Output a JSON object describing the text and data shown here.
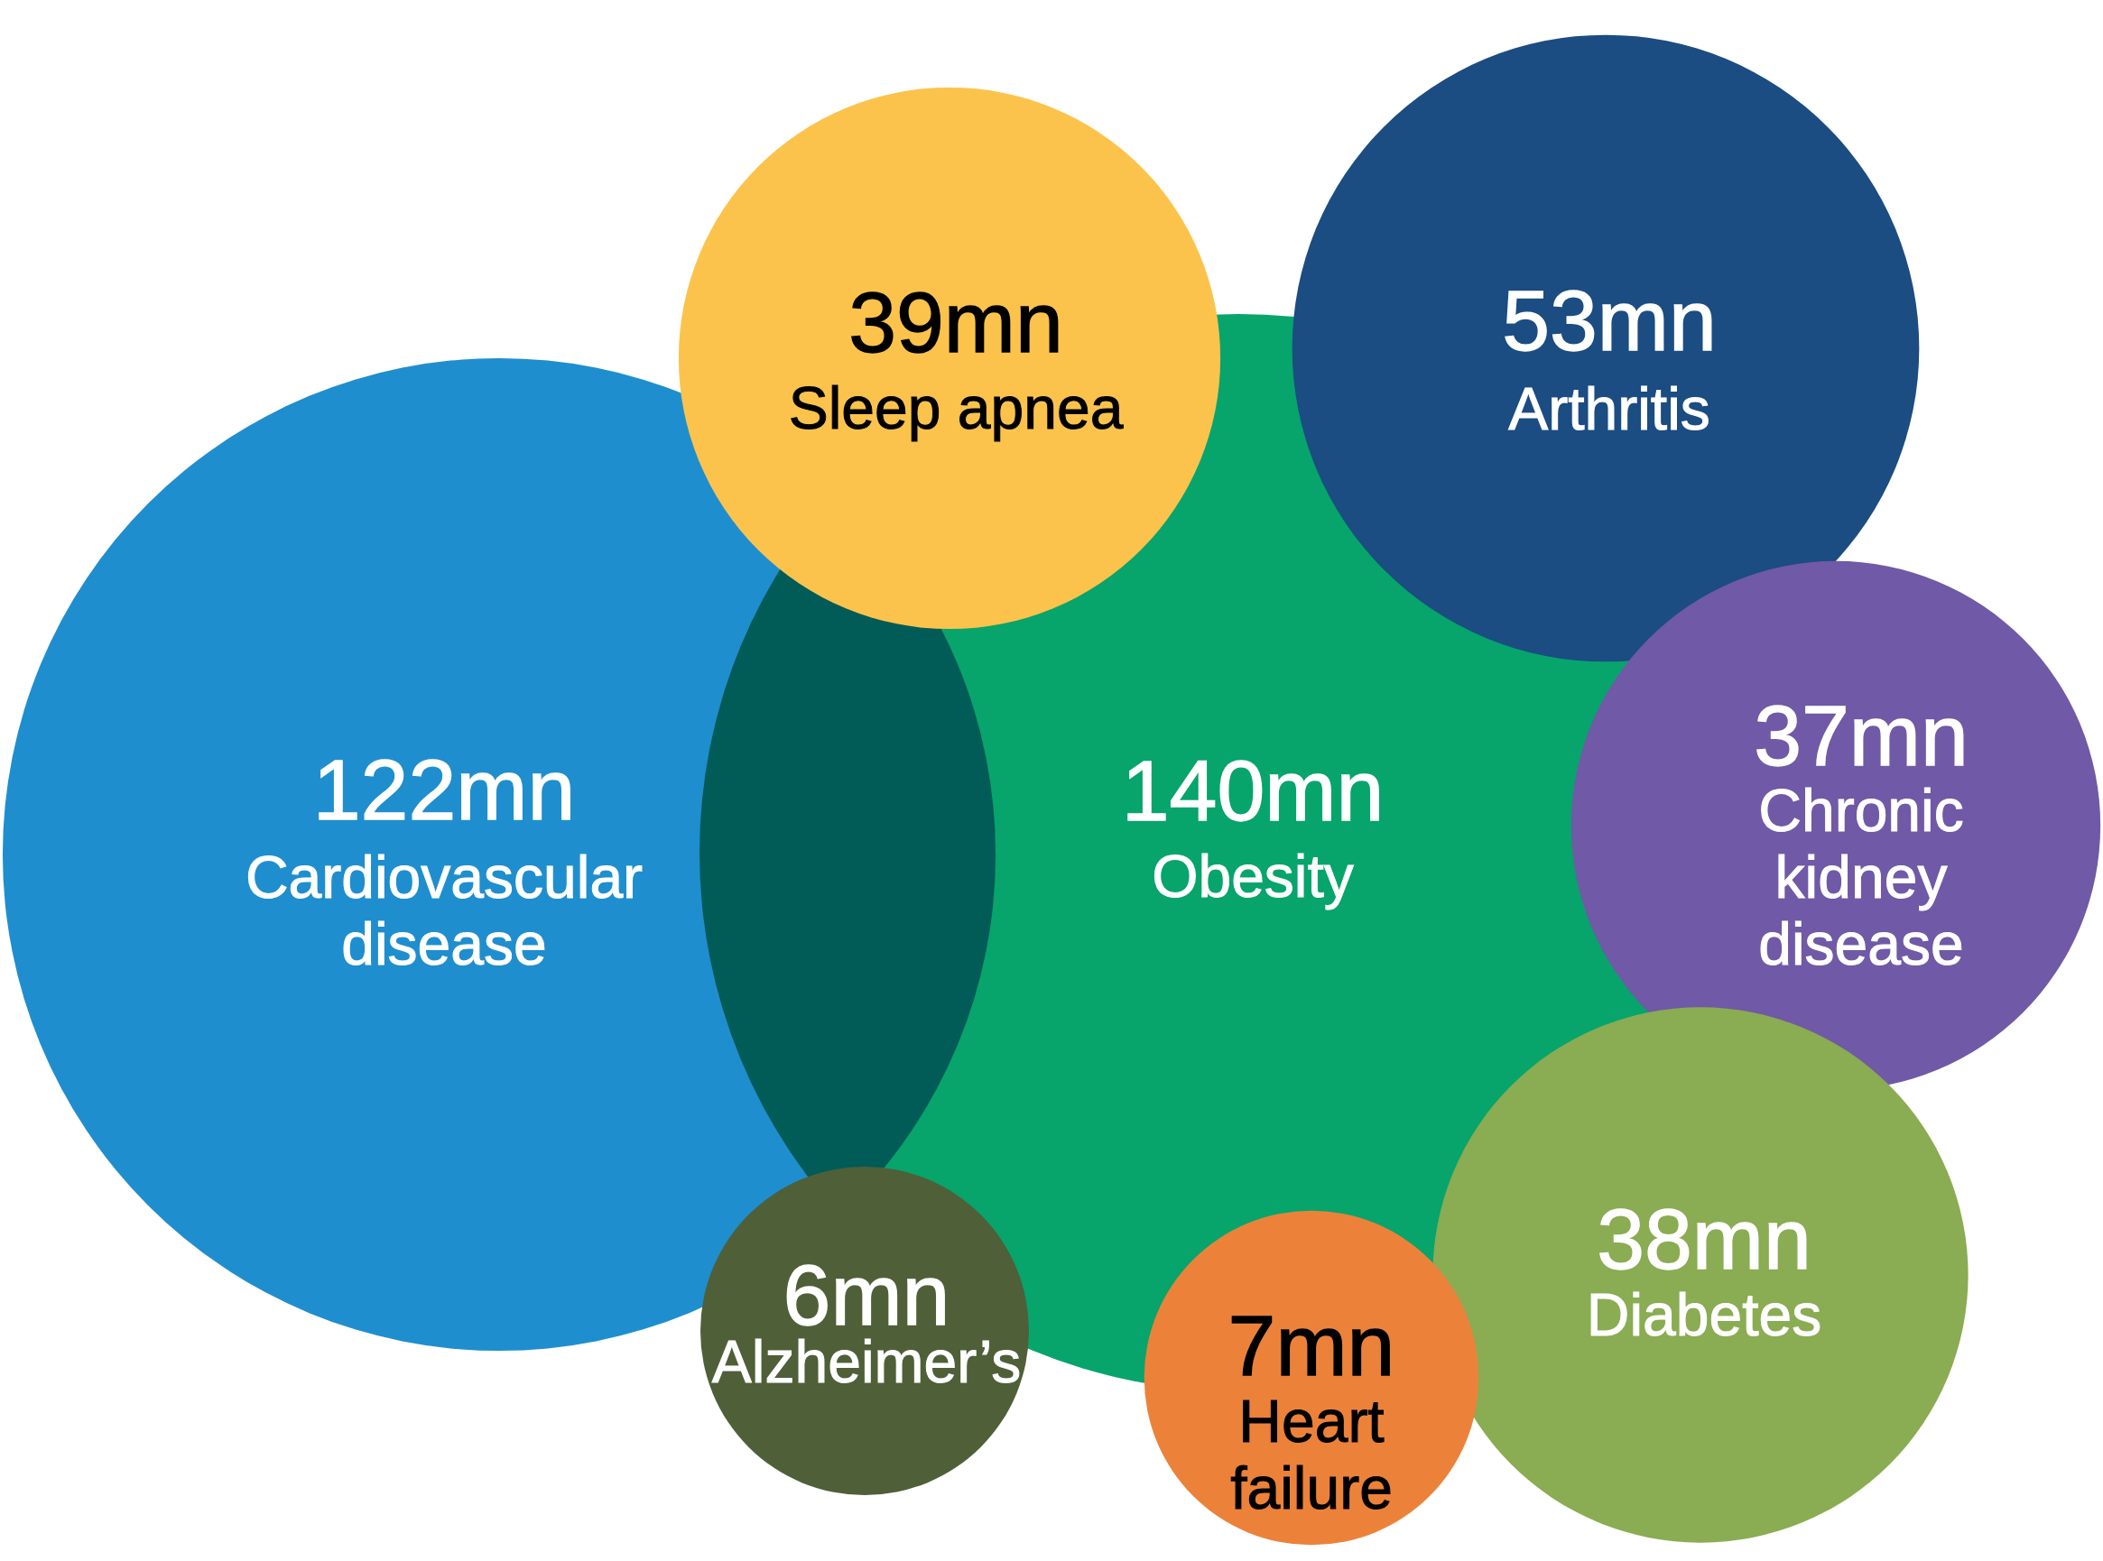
{
  "chart_data": {
    "type": "other",
    "categories": [
      "Cardiovascular disease",
      "Obesity",
      "Sleep apnea",
      "Arthritis",
      "Chronic kidney disease",
      "Diabetes",
      "Alzheimer’s",
      "Heart failure"
    ],
    "values": [
      122,
      140,
      39,
      53,
      37,
      38,
      6,
      7
    ],
    "value_labels": [
      "122mn",
      "140mn",
      "39mn",
      "53mn",
      "37mn",
      "38mn",
      "6mn",
      "7mn"
    ],
    "colors": [
      "#1f8ece",
      "#07a46c",
      "#fcc34c",
      "#1b4c82",
      "#7059a6",
      "#8aac52",
      "#4f5f38",
      "#ec823a"
    ]
  }
}
